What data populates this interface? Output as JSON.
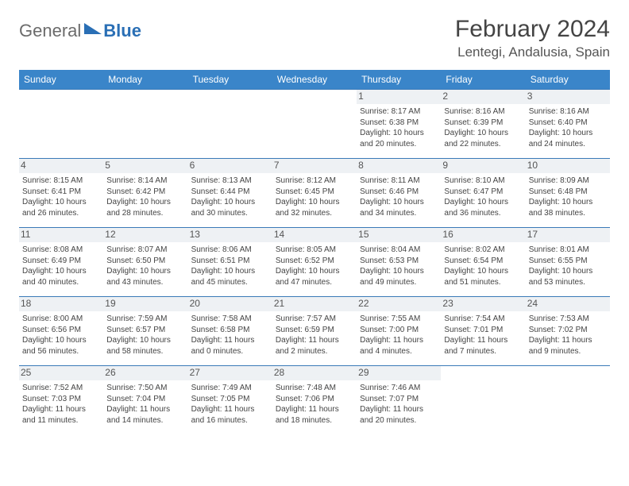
{
  "brand": {
    "name": "General",
    "accent": "Blue",
    "accent_color": "#2a6fb5"
  },
  "title": "February 2024",
  "location": "Lentegi, Andalusia, Spain",
  "colors": {
    "header_bg": "#3a85c9",
    "row_border": "#3a7ab8",
    "daynum_bg": "#eef1f4",
    "text": "#444444"
  },
  "days_of_week": [
    "Sunday",
    "Monday",
    "Tuesday",
    "Wednesday",
    "Thursday",
    "Friday",
    "Saturday"
  ],
  "weeks": [
    [
      null,
      null,
      null,
      null,
      {
        "n": "1",
        "sr": "8:17 AM",
        "ss": "6:38 PM",
        "dl": "10 hours and 20 minutes."
      },
      {
        "n": "2",
        "sr": "8:16 AM",
        "ss": "6:39 PM",
        "dl": "10 hours and 22 minutes."
      },
      {
        "n": "3",
        "sr": "8:16 AM",
        "ss": "6:40 PM",
        "dl": "10 hours and 24 minutes."
      }
    ],
    [
      {
        "n": "4",
        "sr": "8:15 AM",
        "ss": "6:41 PM",
        "dl": "10 hours and 26 minutes."
      },
      {
        "n": "5",
        "sr": "8:14 AM",
        "ss": "6:42 PM",
        "dl": "10 hours and 28 minutes."
      },
      {
        "n": "6",
        "sr": "8:13 AM",
        "ss": "6:44 PM",
        "dl": "10 hours and 30 minutes."
      },
      {
        "n": "7",
        "sr": "8:12 AM",
        "ss": "6:45 PM",
        "dl": "10 hours and 32 minutes."
      },
      {
        "n": "8",
        "sr": "8:11 AM",
        "ss": "6:46 PM",
        "dl": "10 hours and 34 minutes."
      },
      {
        "n": "9",
        "sr": "8:10 AM",
        "ss": "6:47 PM",
        "dl": "10 hours and 36 minutes."
      },
      {
        "n": "10",
        "sr": "8:09 AM",
        "ss": "6:48 PM",
        "dl": "10 hours and 38 minutes."
      }
    ],
    [
      {
        "n": "11",
        "sr": "8:08 AM",
        "ss": "6:49 PM",
        "dl": "10 hours and 40 minutes."
      },
      {
        "n": "12",
        "sr": "8:07 AM",
        "ss": "6:50 PM",
        "dl": "10 hours and 43 minutes."
      },
      {
        "n": "13",
        "sr": "8:06 AM",
        "ss": "6:51 PM",
        "dl": "10 hours and 45 minutes."
      },
      {
        "n": "14",
        "sr": "8:05 AM",
        "ss": "6:52 PM",
        "dl": "10 hours and 47 minutes."
      },
      {
        "n": "15",
        "sr": "8:04 AM",
        "ss": "6:53 PM",
        "dl": "10 hours and 49 minutes."
      },
      {
        "n": "16",
        "sr": "8:02 AM",
        "ss": "6:54 PM",
        "dl": "10 hours and 51 minutes."
      },
      {
        "n": "17",
        "sr": "8:01 AM",
        "ss": "6:55 PM",
        "dl": "10 hours and 53 minutes."
      }
    ],
    [
      {
        "n": "18",
        "sr": "8:00 AM",
        "ss": "6:56 PM",
        "dl": "10 hours and 56 minutes."
      },
      {
        "n": "19",
        "sr": "7:59 AM",
        "ss": "6:57 PM",
        "dl": "10 hours and 58 minutes."
      },
      {
        "n": "20",
        "sr": "7:58 AM",
        "ss": "6:58 PM",
        "dl": "11 hours and 0 minutes."
      },
      {
        "n": "21",
        "sr": "7:57 AM",
        "ss": "6:59 PM",
        "dl": "11 hours and 2 minutes."
      },
      {
        "n": "22",
        "sr": "7:55 AM",
        "ss": "7:00 PM",
        "dl": "11 hours and 4 minutes."
      },
      {
        "n": "23",
        "sr": "7:54 AM",
        "ss": "7:01 PM",
        "dl": "11 hours and 7 minutes."
      },
      {
        "n": "24",
        "sr": "7:53 AM",
        "ss": "7:02 PM",
        "dl": "11 hours and 9 minutes."
      }
    ],
    [
      {
        "n": "25",
        "sr": "7:52 AM",
        "ss": "7:03 PM",
        "dl": "11 hours and 11 minutes."
      },
      {
        "n": "26",
        "sr": "7:50 AM",
        "ss": "7:04 PM",
        "dl": "11 hours and 14 minutes."
      },
      {
        "n": "27",
        "sr": "7:49 AM",
        "ss": "7:05 PM",
        "dl": "11 hours and 16 minutes."
      },
      {
        "n": "28",
        "sr": "7:48 AM",
        "ss": "7:06 PM",
        "dl": "11 hours and 18 minutes."
      },
      {
        "n": "29",
        "sr": "7:46 AM",
        "ss": "7:07 PM",
        "dl": "11 hours and 20 minutes."
      },
      null,
      null
    ]
  ],
  "labels": {
    "sunrise": "Sunrise:",
    "sunset": "Sunset:",
    "daylight": "Daylight:"
  }
}
